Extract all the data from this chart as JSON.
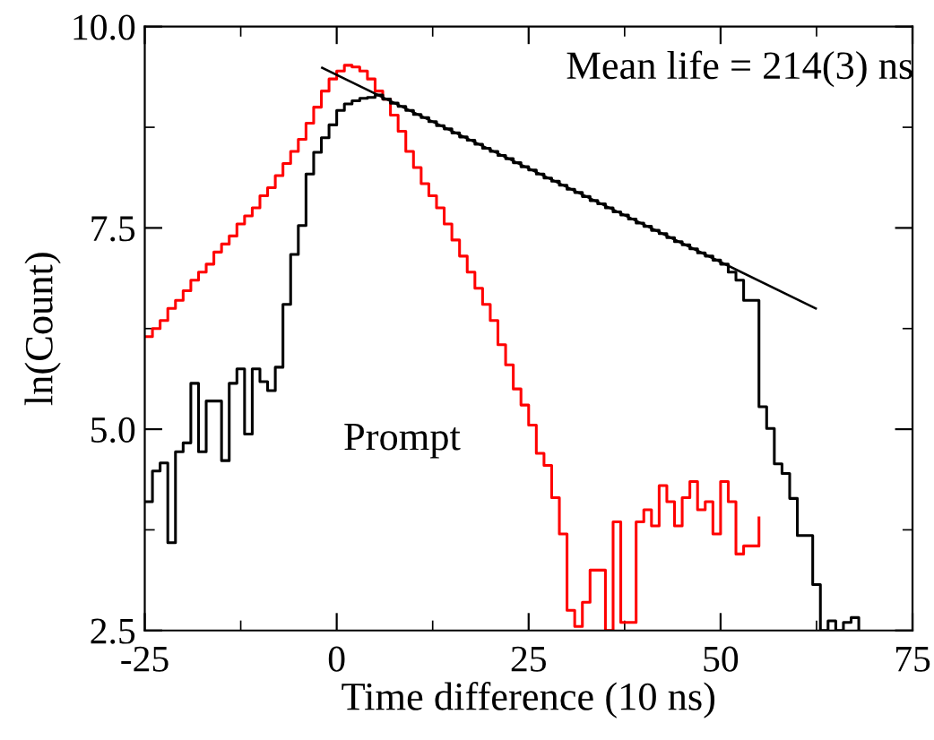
{
  "chart_data": {
    "type": "step",
    "xlabel": "Time difference (10 ns)",
    "ylabel": "ln(Count)",
    "xlim": [
      -25,
      75
    ],
    "xticks": [
      -25,
      {
        "value": -12.5,
        "label": null
      },
      0,
      {
        "value": 12.5,
        "label": null
      },
      25,
      {
        "value": 37.5,
        "label": null
      },
      50,
      {
        "value": 62.5,
        "label": null
      },
      75
    ],
    "ylim": [
      2.5,
      10
    ],
    "yticks": [
      {
        "value": 2.5,
        "label": "2.5"
      },
      {
        "value": 3.75,
        "label": null
      },
      {
        "value": 5,
        "label": "5.0"
      },
      {
        "value": 6.25,
        "label": null
      },
      {
        "value": 7.5,
        "label": "7.5"
      },
      {
        "value": 8.75,
        "label": null
      },
      {
        "value": 10,
        "label": "10.0"
      }
    ],
    "grid": false,
    "legend": false,
    "series": [
      {
        "color": "#ff0000",
        "x": [
          -25,
          -24,
          -23,
          -22,
          -21,
          -20,
          -19,
          -18,
          -17,
          -16,
          -15,
          -14,
          -13,
          -12,
          -11,
          -10,
          -9,
          -8,
          -7,
          -6,
          -5,
          -4,
          -3,
          -2,
          -1,
          0,
          1,
          2,
          3,
          4,
          5,
          6,
          7,
          8,
          9,
          10,
          11,
          12,
          13,
          14,
          15,
          16,
          17,
          18,
          19,
          20,
          21,
          22,
          23,
          24,
          25,
          26,
          27,
          28,
          29,
          30,
          31,
          32,
          33,
          34,
          35,
          36,
          37,
          38,
          39,
          40,
          41,
          42,
          43,
          44,
          45,
          46,
          47,
          48,
          49,
          50,
          51,
          52,
          53,
          54,
          55
        ],
        "values": [
          6.15,
          6.25,
          6.35,
          6.5,
          6.6,
          6.72,
          6.85,
          6.95,
          7.05,
          7.2,
          7.3,
          7.4,
          7.55,
          7.65,
          7.75,
          7.9,
          8.0,
          8.15,
          8.3,
          8.45,
          8.6,
          8.8,
          9.0,
          9.2,
          9.35,
          9.45,
          9.52,
          9.5,
          9.45,
          9.35,
          9.2,
          9.1,
          8.9,
          8.7,
          8.45,
          8.25,
          8.05,
          7.9,
          7.75,
          7.55,
          7.35,
          7.15,
          6.95,
          6.75,
          6.55,
          6.35,
          6.05,
          5.8,
          5.5,
          5.3,
          5.05,
          4.7,
          4.55,
          4.15,
          3.7,
          2.75,
          2.55,
          2.85,
          3.25,
          3.25,
          2.5,
          3.85,
          2.6,
          2.6,
          3.85,
          4.0,
          3.8,
          4.3,
          4.1,
          3.8,
          4.15,
          4.35,
          4.0,
          4.1,
          3.7,
          4.35,
          4.1,
          3.45,
          3.55,
          3.55,
          3.9
        ]
      },
      {
        "color": "#000000",
        "x": [
          -25,
          -24,
          -23,
          -22,
          -21,
          -20,
          -19,
          -18,
          -17,
          -16,
          -15,
          -14,
          -13,
          -12,
          -11,
          -10,
          -9,
          -8,
          -7,
          -6,
          -5,
          -4,
          -3,
          -2,
          -1,
          0,
          1,
          2,
          3,
          4,
          5,
          6,
          7,
          8,
          9,
          10,
          11,
          12,
          13,
          14,
          15,
          16,
          17,
          18,
          19,
          20,
          21,
          22,
          23,
          24,
          25,
          26,
          27,
          28,
          29,
          30,
          31,
          32,
          33,
          34,
          35,
          36,
          37,
          38,
          39,
          40,
          41,
          42,
          43,
          44,
          45,
          46,
          47,
          48,
          49,
          50,
          51,
          52,
          53,
          54,
          55,
          56,
          57,
          58,
          59,
          60,
          61,
          62,
          63,
          64,
          65,
          66,
          67,
          68
        ],
        "values": [
          4.1,
          4.48,
          4.58,
          3.59,
          4.72,
          4.83,
          5.57,
          4.72,
          5.35,
          5.35,
          4.61,
          5.57,
          5.75,
          4.94,
          5.75,
          5.59,
          5.48,
          5.77,
          6.55,
          7.17,
          7.53,
          8.17,
          8.44,
          8.62,
          8.78,
          8.96,
          9.04,
          9.08,
          9.11,
          9.12,
          9.15,
          9.1,
          9.05,
          9.01,
          8.96,
          8.91,
          8.87,
          8.82,
          8.77,
          8.73,
          8.68,
          8.63,
          8.59,
          8.54,
          8.49,
          8.45,
          8.4,
          8.36,
          8.31,
          8.26,
          8.22,
          8.17,
          8.12,
          8.08,
          8.03,
          7.98,
          7.94,
          7.89,
          7.84,
          7.8,
          7.75,
          7.7,
          7.66,
          7.61,
          7.56,
          7.52,
          7.47,
          7.43,
          7.38,
          7.33,
          7.29,
          7.24,
          7.19,
          7.15,
          7.1,
          7.05,
          6.95,
          6.85,
          6.6,
          6.6,
          5.28,
          5.01,
          4.57,
          4.45,
          4.14,
          3.68,
          3.68,
          3.07,
          2.5,
          2.62,
          2.5,
          2.6,
          2.66,
          2.5
        ]
      },
      {
        "type": "line",
        "color": "#000000",
        "x": [
          -1.9,
          62.4
        ],
        "values": [
          9.49,
          6.5
        ]
      }
    ],
    "annotations": [
      "Mean life = 214(3) ns",
      "Prompt"
    ]
  }
}
